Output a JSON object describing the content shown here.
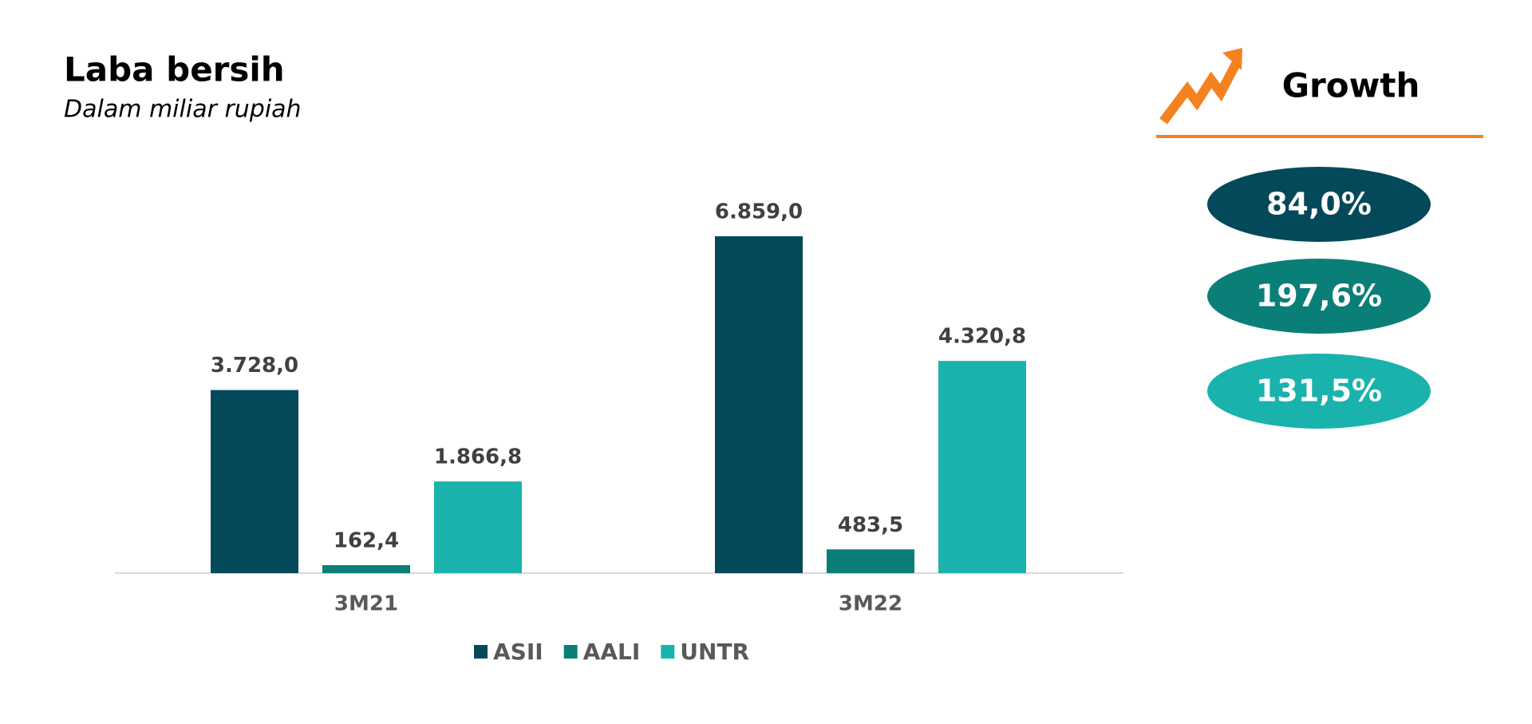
{
  "chart_data": {
    "type": "bar",
    "title": "Laba bersih",
    "subtitle": "Dalam miliar rupiah",
    "categories": [
      "3M21",
      "3M22"
    ],
    "series": [
      {
        "name": "ASII",
        "color": "#04495a",
        "values": [
          3728.0,
          6859.0
        ],
        "value_labels": [
          "3.728,0",
          "6.859,0"
        ]
      },
      {
        "name": "AALI",
        "color": "#0a7f78",
        "values": [
          162.4,
          483.5
        ],
        "value_labels": [
          "162,4",
          "483,5"
        ]
      },
      {
        "name": "UNTR",
        "color": "#1ab2ad",
        "values": [
          1866.8,
          4320.8
        ],
        "value_labels": [
          "1.866,8",
          "4.320,8"
        ]
      }
    ],
    "legend": "bottom"
  },
  "growth_panel": {
    "title": "Growth",
    "items": [
      "84,0%",
      "197,6%",
      "131,5%"
    ]
  }
}
